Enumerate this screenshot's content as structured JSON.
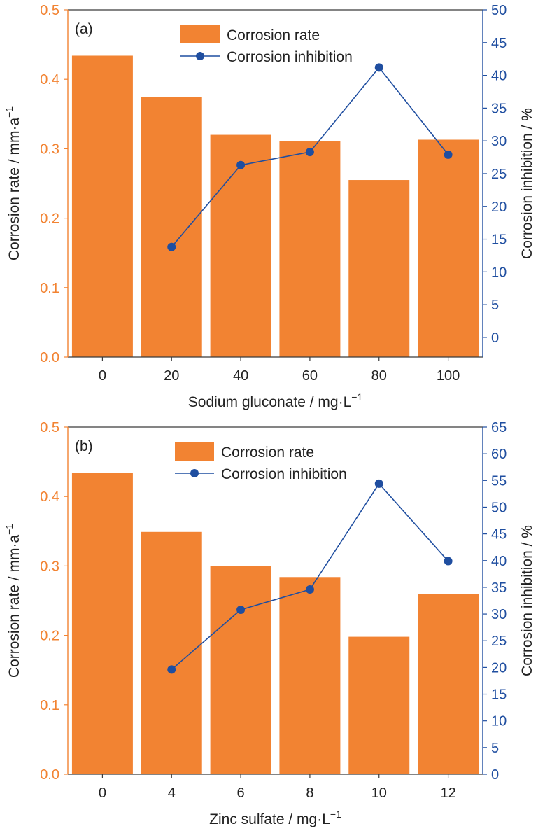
{
  "chart_data": [
    {
      "type": "bar",
      "panel_label": "(a)",
      "categories": [
        "0",
        "20",
        "40",
        "60",
        "80",
        "100"
      ],
      "xlabel": "Sodium gluconate / mg·L",
      "xlabel_sup": "−1",
      "ylabel_left": "Corrosion rate / mm·a",
      "ylabel_left_sup": "−1",
      "ylabel_right": "Corrosion inhibition / %",
      "ylim_left": [
        0,
        0.5
      ],
      "yticks_left": [
        "0.0",
        "0.1",
        "0.2",
        "0.3",
        "0.4",
        "0.5"
      ],
      "ylim_right": [
        -3,
        50
      ],
      "yticks_right": [
        "0",
        "5",
        "10",
        "15",
        "20",
        "25",
        "30",
        "35",
        "40",
        "45",
        "50"
      ],
      "series": [
        {
          "name": "Corrosion rate",
          "type": "bar",
          "axis": "left",
          "values": [
            0.434,
            0.374,
            0.32,
            0.311,
            0.255,
            0.313
          ]
        },
        {
          "name": "Corrosion inhibition",
          "type": "line",
          "axis": "right",
          "values": [
            null,
            13.8,
            26.3,
            28.3,
            41.2,
            27.9
          ]
        }
      ],
      "legend_position": "top-center",
      "grid": false
    },
    {
      "type": "bar",
      "panel_label": "(b)",
      "categories": [
        "0",
        "4",
        "6",
        "8",
        "10",
        "12"
      ],
      "xlabel": "Zinc sulfate / mg·L",
      "xlabel_sup": "−1",
      "ylabel_left": "Corrosion rate / mm·a",
      "ylabel_left_sup": "−1",
      "ylabel_right": "Corrosion inhibition / %",
      "ylim_left": [
        0,
        0.5
      ],
      "yticks_left": [
        "0.0",
        "0.1",
        "0.2",
        "0.3",
        "0.4",
        "0.5"
      ],
      "ylim_right": [
        0,
        65
      ],
      "yticks_right": [
        "0",
        "5",
        "10",
        "15",
        "20",
        "25",
        "30",
        "35",
        "40",
        "45",
        "50",
        "55",
        "60",
        "65"
      ],
      "series": [
        {
          "name": "Corrosion rate",
          "type": "bar",
          "axis": "left",
          "values": [
            0.434,
            0.349,
            0.3,
            0.284,
            0.198,
            0.26
          ]
        },
        {
          "name": "Corrosion inhibition",
          "type": "line",
          "axis": "right",
          "values": [
            null,
            19.6,
            30.8,
            34.6,
            54.4,
            39.9
          ]
        }
      ],
      "legend_position": "top-center",
      "grid": false
    }
  ],
  "colors": {
    "bar": "#f28332",
    "line": "#1f4ea0",
    "left_axis": "#f28332",
    "right_axis": "#1f4ea0",
    "frame": "#3a3a3a"
  }
}
